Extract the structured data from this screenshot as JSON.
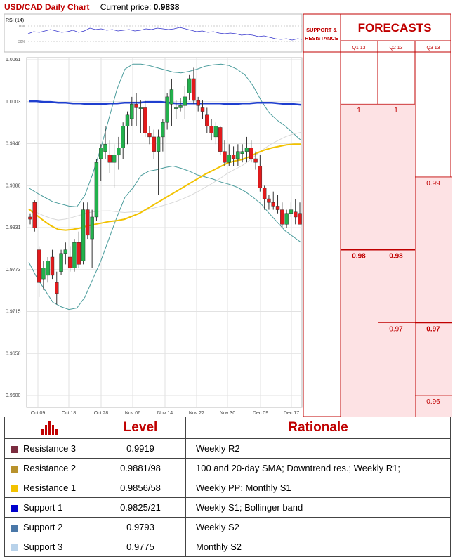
{
  "header": {
    "title": "USD/CAD Daily Chart",
    "price_label": "Current price:",
    "price_value": "0.9838"
  },
  "rsi": {
    "label": "RSI (14)",
    "tick_hi": "70%",
    "tick_lo": "30%"
  },
  "forecast": {
    "support_label": "SUPPORT &",
    "resistance_label": "RESISTANCE",
    "title": "FORECASTS",
    "quarters": [
      "Q1 13",
      "Q2 13",
      "Q3 13"
    ]
  },
  "colors": {
    "r3": "#7b2c3f",
    "r2": "#c4a44a",
    "r1": "#f2c200",
    "s1": "#0000cc",
    "s2": "#3c6a96",
    "s3": "#b8d2ea",
    "brand": "#c00000"
  },
  "chart_data": {
    "type": "candlestick",
    "title": "USD/CAD Daily Chart",
    "y_ticks": [
      "1.0061",
      "1.0003",
      "0.9946",
      "0.9888",
      "0.9831",
      "0.9773",
      "0.9715",
      "0.9658",
      "0.9600"
    ],
    "x_ticks": [
      "Oct 09",
      "Oct 18",
      "Oct 28",
      "Nov 06",
      "Nov 14",
      "Nov 22",
      "Nov 30",
      "Dec 09",
      "Dec 17"
    ],
    "ylim": [
      0.96,
      1.0061
    ],
    "grid": true,
    "candles": [
      [
        0.9845,
        0.985,
        0.9835,
        0.9842
      ],
      [
        0.9865,
        0.9868,
        0.9825,
        0.983
      ],
      [
        0.98,
        0.9805,
        0.9735,
        0.9755
      ],
      [
        0.976,
        0.9785,
        0.9745,
        0.9775
      ],
      [
        0.9765,
        0.979,
        0.9755,
        0.9785
      ],
      [
        0.979,
        0.98,
        0.976,
        0.9765
      ],
      [
        0.9755,
        0.977,
        0.9725,
        0.974
      ],
      [
        0.977,
        0.98,
        0.9765,
        0.9795
      ],
      [
        0.9795,
        0.981,
        0.978,
        0.98
      ],
      [
        0.979,
        0.9805,
        0.977,
        0.9775
      ],
      [
        0.9775,
        0.9815,
        0.977,
        0.981
      ],
      [
        0.981,
        0.9825,
        0.9775,
        0.978
      ],
      [
        0.9785,
        0.9865,
        0.978,
        0.9855
      ],
      [
        0.9855,
        0.9865,
        0.9815,
        0.982
      ],
      [
        0.9815,
        0.9855,
        0.9775,
        0.9845
      ],
      [
        0.9845,
        0.9925,
        0.984,
        0.992
      ],
      [
        0.9925,
        0.9945,
        0.9895,
        0.994
      ],
      [
        0.9935,
        0.997,
        0.9925,
        0.9945
      ],
      [
        0.993,
        0.995,
        0.9905,
        0.992
      ],
      [
        0.992,
        0.9945,
        0.9885,
        0.993
      ],
      [
        0.993,
        0.9955,
        0.991,
        0.994
      ],
      [
        0.994,
        0.9975,
        0.9925,
        0.997
      ],
      [
        0.997,
        0.999,
        0.9945,
        0.9985
      ],
      [
        0.998,
        1.001,
        0.997,
        1.0
      ],
      [
        1.0,
        1.0015,
        0.997,
        0.9995
      ],
      [
        0.9995,
        1.0005,
        0.996,
        0.9995
      ],
      [
        0.9995,
        1.0005,
        0.9955,
        0.996
      ],
      [
        0.996,
        0.997,
        0.9945,
        0.9955
      ],
      [
        0.9955,
        0.9965,
        0.9925,
        0.9935
      ],
      [
        0.9935,
        0.9965,
        0.9875,
        0.9955
      ],
      [
        0.9955,
        0.998,
        0.9935,
        0.9975
      ],
      [
        0.9975,
        1.0015,
        0.9965,
        1.001
      ],
      [
        1.0,
        1.0035,
        0.997,
        1.002
      ],
      [
        0.9995,
        1.0005,
        0.998,
        0.9995
      ],
      [
        0.9995,
        1.0008,
        0.999,
        0.9998
      ],
      [
        0.9998,
        1.0025,
        0.998,
        1.001
      ],
      [
        1.0015,
        1.004,
        1.0005,
        1.0035
      ],
      [
        1.0035,
        1.005,
        1.0,
        1.0005
      ],
      [
        1.0005,
        1.001,
        0.999,
        0.9998
      ],
      [
        0.9995,
        1.0005,
        0.998,
        0.999
      ],
      [
        0.9985,
        0.9995,
        0.996,
        0.997
      ],
      [
        0.997,
        0.998,
        0.995,
        0.996
      ],
      [
        0.9955,
        0.9975,
        0.9945,
        0.997
      ],
      [
        0.9968,
        0.997,
        0.993,
        0.9935
      ],
      [
        0.9935,
        0.995,
        0.9915,
        0.992
      ],
      [
        0.992,
        0.9945,
        0.9915,
        0.993
      ],
      [
        0.993,
        0.9942,
        0.9915,
        0.9925
      ],
      [
        0.9925,
        0.9945,
        0.9915,
        0.9935
      ],
      [
        0.9932,
        0.9945,
        0.992,
        0.9935
      ],
      [
        0.9935,
        0.9955,
        0.992,
        0.994
      ],
      [
        0.994,
        0.995,
        0.992,
        0.9925
      ],
      [
        0.9925,
        0.9935,
        0.991,
        0.992
      ],
      [
        0.9915,
        0.993,
        0.988,
        0.9885
      ],
      [
        0.9885,
        0.9888,
        0.9855,
        0.987
      ],
      [
        0.987,
        0.9875,
        0.9855,
        0.9865
      ],
      [
        0.9865,
        0.988,
        0.9855,
        0.986
      ],
      [
        0.986,
        0.9875,
        0.985,
        0.9855
      ],
      [
        0.9855,
        0.9865,
        0.983,
        0.9835
      ],
      [
        0.9835,
        0.9855,
        0.983,
        0.985
      ],
      [
        0.985,
        0.9865,
        0.9845,
        0.9855
      ],
      [
        0.9852,
        0.987,
        0.9835,
        0.9845
      ],
      [
        0.985,
        0.9865,
        0.9835,
        0.9835
      ]
    ],
    "sma_fast": [
      0.9858,
      0.9852,
      0.9846,
      0.984,
      0.9835,
      0.9831,
      0.9828,
      0.9826,
      0.9826,
      0.9828,
      0.9832,
      0.9838,
      0.9846,
      0.9855,
      0.9866,
      0.9879,
      0.9892,
      0.9904,
      0.9916,
      0.9927,
      0.9937,
      0.9946,
      0.9955,
      0.9962,
      0.9968,
      0.9972,
      0.9974,
      0.9974,
      0.9972,
      0.997,
      0.9965,
      0.9958,
      0.9948,
      0.9937,
      0.9925,
      0.9911,
      0.99,
      0.989
    ],
    "sma_slow": [
      0.9856,
      0.9848,
      0.984,
      0.9833,
      0.9828,
      0.9827,
      0.9828,
      0.983,
      0.9833,
      0.9835,
      0.9837,
      0.9839,
      0.984,
      0.9842,
      0.9846,
      0.985,
      0.9856,
      0.9862,
      0.9868,
      0.9874,
      0.988,
      0.9886,
      0.9892,
      0.9898,
      0.9904,
      0.9909,
      0.9914,
      0.9919,
      0.9922,
      0.9924,
      0.9928,
      0.9933,
      0.9937,
      0.994,
      0.9942,
      0.9944,
      0.9945,
      0.9945
    ],
    "sma_long": [
      1.0004,
      1.0004,
      1.0003,
      1.0003,
      1.0002,
      1.0002,
      1.0001,
      1.0001,
      1.0,
      1.0,
      1.0,
      1.0001,
      1.0001,
      1.0002,
      1.0002,
      1.0002,
      1.0003,
      1.0003,
      1.0003,
      1.0002,
      1.0001,
      1.0001,
      1.0001,
      1.0001,
      1.0001,
      1.0001,
      1.0001,
      1.0,
      1.0,
      1.0001,
      1.0001,
      1.0002,
      1.0002,
      1.0002,
      1.0001,
      1.0,
      1.0,
      0.9999
    ],
    "bb_upper": [
      0.9885,
      0.9878,
      0.9872,
      0.9866,
      0.9863,
      0.986,
      0.9859,
      0.9875,
      0.9905,
      0.994,
      0.998,
      1.002,
      1.0048,
      1.0055,
      1.0055,
      1.0053,
      1.005,
      1.0047,
      1.0044,
      1.0043,
      1.0045,
      1.0048,
      1.0052,
      1.0054,
      1.0055,
      1.0053,
      1.0048,
      1.004,
      1.0025,
      1.0005,
      0.9988,
      0.9978,
      0.997,
      0.996,
      0.995
    ],
    "bb_lower": [
      0.9783,
      0.9762,
      0.9745,
      0.9728,
      0.9722,
      0.9718,
      0.972,
      0.9735,
      0.976,
      0.9785,
      0.9815,
      0.9845,
      0.9872,
      0.9885,
      0.9902,
      0.9908,
      0.991,
      0.9913,
      0.9915,
      0.9912,
      0.9908,
      0.9903,
      0.99,
      0.9897,
      0.9893,
      0.989,
      0.9886,
      0.988,
      0.9872,
      0.9863,
      0.985,
      0.9838,
      0.9826,
      0.9818,
      0.981
    ]
  },
  "levels_right": [
    {
      "key": "r3",
      "label": "0.9919",
      "value": 0.9919
    },
    {
      "key": "r2",
      "label": "0.9881",
      "value": 0.9881
    },
    {
      "key": "r1",
      "label": "0.9856",
      "value": 0.9856
    },
    {
      "key": "s1",
      "label": "0.9825",
      "value": 0.9825
    },
    {
      "key": "s2",
      "label": "0.9793",
      "value": 0.9793
    },
    {
      "key": "s3",
      "label": "0.9775",
      "value": 0.9775
    }
  ],
  "forecast_values": {
    "q1": [
      {
        "label": "1",
        "value": 1.0
      },
      {
        "label": "0.98",
        "value": 0.98
      }
    ],
    "q2": [
      {
        "label": "1",
        "value": 1.0
      },
      {
        "label": "0.98",
        "value": 0.98
      },
      {
        "label": "0.97",
        "value": 0.97
      }
    ],
    "q3": [
      {
        "label": "0.99",
        "value": 0.99
      },
      {
        "label": "0.97",
        "value": 0.97
      },
      {
        "label": "0.96",
        "value": 0.96
      }
    ]
  },
  "table": {
    "headers": {
      "level": "Level",
      "rationale": "Rationale"
    },
    "rows": [
      {
        "name": "Resistance 3",
        "level": "0.9919",
        "rationale": "Weekly R2"
      },
      {
        "name": "Resistance 2",
        "level": "0.9881/98",
        "rationale": "100 and 20-day SMA; Downtrend res.; Weekly R1;"
      },
      {
        "name": "Resistance 1",
        "level": "0.9856/58",
        "rationale": "Weekly PP; Monthly S1"
      },
      {
        "name": "Support 1",
        "level": "0.9825/21",
        "rationale": "Weekly S1; Bollinger band"
      },
      {
        "name": "Support 2",
        "level": "0.9793",
        "rationale": "Weekly S2"
      },
      {
        "name": "Support 3",
        "level": "0.9775",
        "rationale": "Monthly S2"
      }
    ]
  }
}
